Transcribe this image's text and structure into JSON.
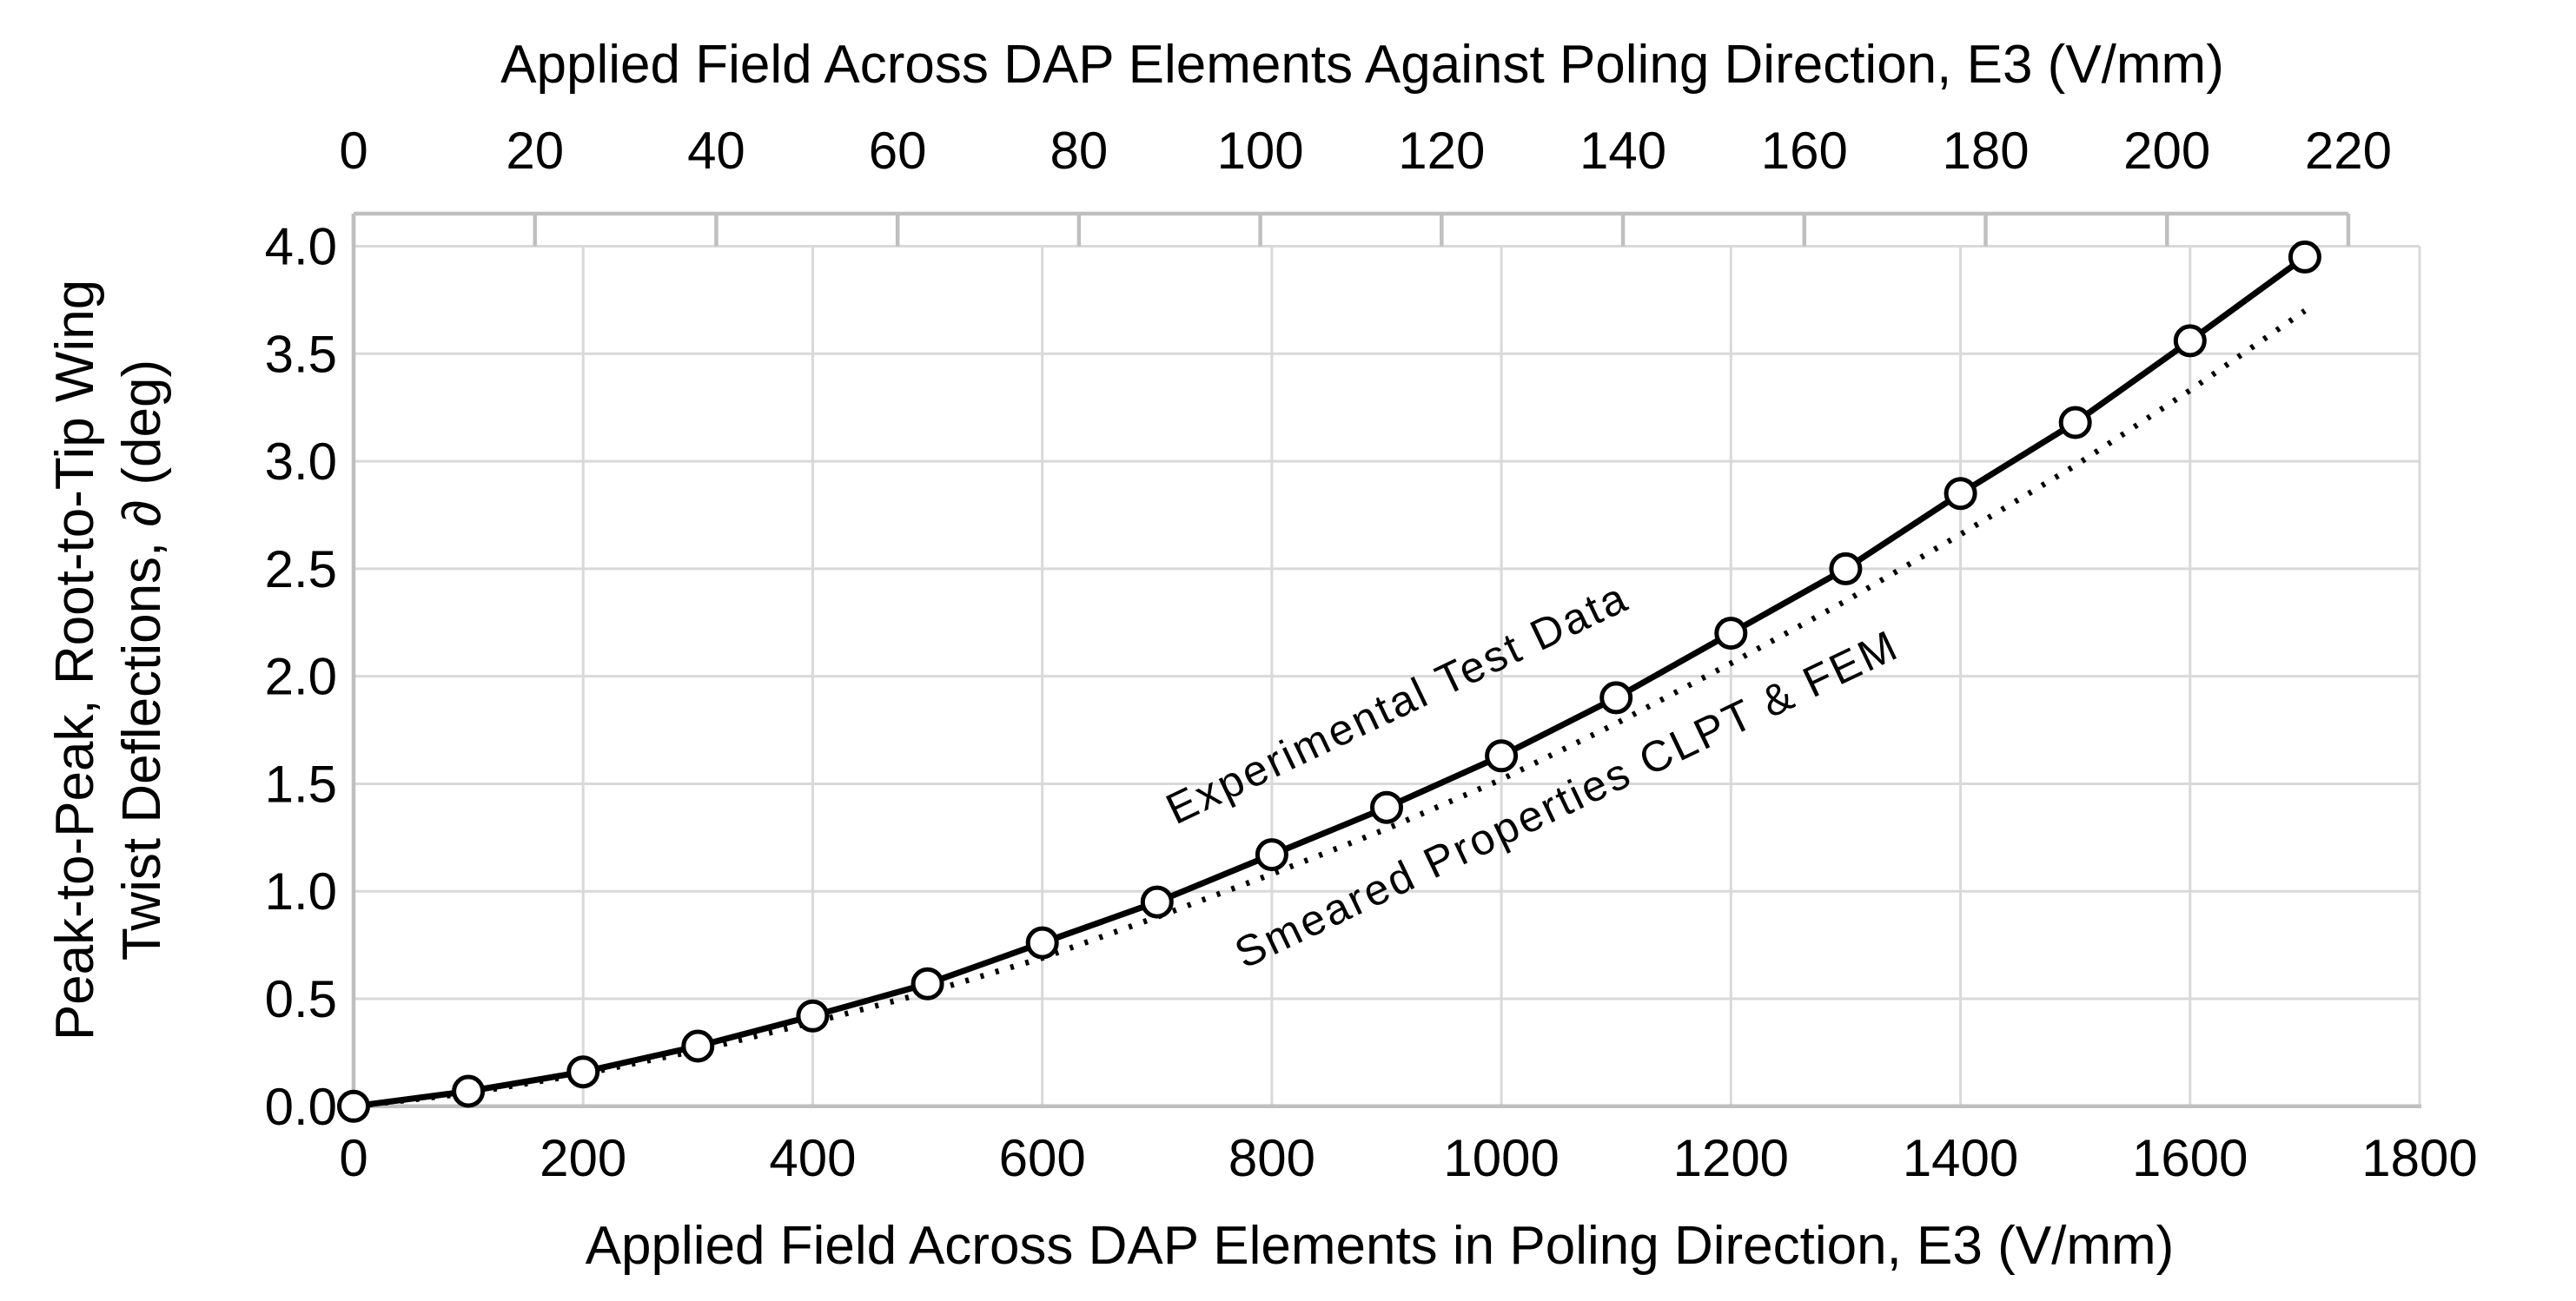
{
  "chart_data": {
    "type": "line",
    "title_top": "Applied Field Across DAP Elements Against Poling Direction, E3 (V/mm)",
    "xlabel_bottom": "Applied Field Across DAP Elements in Poling Direction, E3 (V/mm)",
    "ylabel_line1": "Peak-to-Peak, Root-to-Tip Wing",
    "ylabel_line2": "Twist Deflections, ∂ (deg)",
    "x_bottom": {
      "min": 0,
      "max": 1800,
      "tick_step": 200,
      "ticks": [
        0,
        200,
        400,
        600,
        800,
        1000,
        1200,
        1400,
        1600,
        1800
      ]
    },
    "x_top": {
      "min": 0,
      "max": 220,
      "tick_step": 20,
      "ticks": [
        0,
        20,
        40,
        60,
        80,
        100,
        120,
        140,
        160,
        180,
        200,
        220
      ],
      "plot_fraction": 0.9655
    },
    "y": {
      "min": 0.0,
      "max": 4.0,
      "tick_step": 0.5,
      "ticks": [
        "0.0",
        "0.5",
        "1.0",
        "1.5",
        "2.0",
        "2.5",
        "3.0",
        "3.5",
        "4.0"
      ]
    },
    "grid": true,
    "legend_position": "inline-annotations",
    "x": [
      0,
      100,
      200,
      300,
      400,
      500,
      600,
      700,
      800,
      900,
      1000,
      1100,
      1200,
      1300,
      1400,
      1500,
      1600,
      1700
    ],
    "series": [
      {
        "name": "Experimental Test Data",
        "style": "solid-line-circle-markers",
        "values": [
          0.0,
          0.07,
          0.16,
          0.28,
          0.42,
          0.57,
          0.76,
          0.95,
          1.17,
          1.39,
          1.63,
          1.9,
          2.2,
          2.5,
          2.85,
          3.18,
          3.56,
          3.95
        ],
        "label": {
          "x": 1353,
          "y": 950,
          "angle": -25.5
        }
      },
      {
        "name": "Smeared Properties CLPT & FEM",
        "style": "dotted-line",
        "values": [
          0.0,
          0.06,
          0.15,
          0.26,
          0.39,
          0.53,
          0.69,
          0.88,
          1.08,
          1.29,
          1.52,
          1.78,
          2.06,
          2.35,
          2.66,
          2.98,
          3.33,
          3.7
        ],
        "label": {
          "x": 1432,
          "y": 1116,
          "angle": -25.5
        }
      }
    ],
    "colors": {
      "series": "#000000",
      "marker_fill": "#FFFFFF",
      "gridline": "#D9D9D9",
      "axis_line": "#BFBFBF",
      "text": "#000000",
      "background": "#FFFFFF"
    }
  }
}
